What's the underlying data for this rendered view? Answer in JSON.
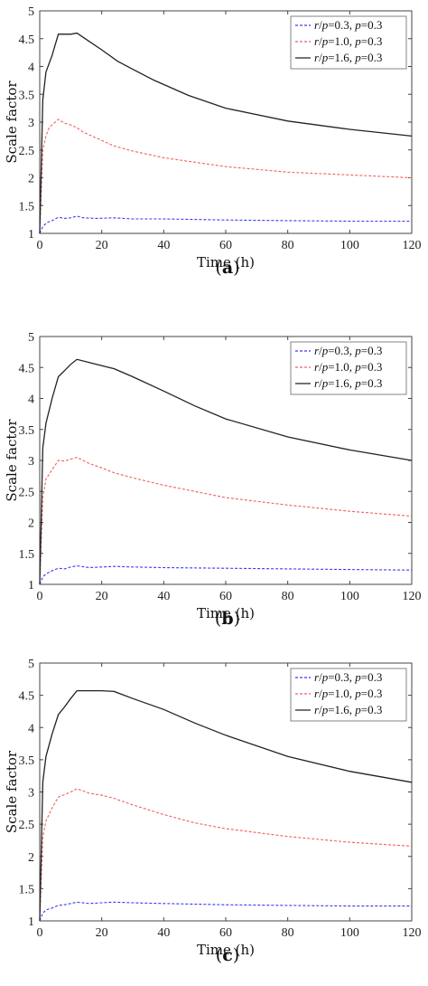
{
  "chart_data": [
    {
      "type": "line",
      "caption": "(a)",
      "xlabel": "Time (h)",
      "ylabel": "Scale factor",
      "xlim": [
        0,
        120
      ],
      "ylim": [
        1,
        5
      ],
      "xticks": [
        "0",
        "20",
        "40",
        "60",
        "80",
        "100",
        "120"
      ],
      "yticks": [
        "1",
        "1.5",
        "2",
        "2.5",
        "3",
        "3.5",
        "4",
        "4.5",
        "5"
      ],
      "legend_position": "top-right",
      "series": [
        {
          "name": "r/p=0.3, p=0.3",
          "color": "#3a3af0",
          "dash": "dashed",
          "x": [
            0,
            1,
            2,
            3,
            4,
            6,
            8,
            10,
            12,
            14,
            18,
            24,
            30,
            40,
            60,
            80,
            100,
            120
          ],
          "y": [
            1,
            1.12,
            1.18,
            1.21,
            1.23,
            1.29,
            1.27,
            1.28,
            1.31,
            1.28,
            1.27,
            1.28,
            1.26,
            1.26,
            1.24,
            1.23,
            1.22,
            1.22
          ]
        },
        {
          "name": "r/p=1.0, p=0.3",
          "color": "#f06060",
          "dash": "dashed",
          "x": [
            0,
            1,
            2,
            3,
            4,
            6,
            8,
            10,
            12,
            14,
            18,
            24,
            30,
            40,
            60,
            80,
            100,
            120
          ],
          "y": [
            1,
            2.5,
            2.75,
            2.9,
            2.95,
            3.05,
            2.98,
            2.95,
            2.9,
            2.82,
            2.72,
            2.57,
            2.48,
            2.36,
            2.2,
            2.1,
            2.05,
            2.0
          ]
        },
        {
          "name": "r/p=1.6, p=0.3",
          "color": "#222222",
          "dash": "solid",
          "x": [
            0,
            1,
            2,
            4,
            6,
            8,
            10,
            12,
            16,
            20,
            25,
            30,
            37,
            48,
            60,
            80,
            100,
            120
          ],
          "y": [
            1,
            3.4,
            3.9,
            4.2,
            4.58,
            4.58,
            4.58,
            4.6,
            4.45,
            4.3,
            4.1,
            3.95,
            3.75,
            3.48,
            3.25,
            3.02,
            2.87,
            2.75
          ]
        }
      ]
    },
    {
      "type": "line",
      "caption": "(b)",
      "xlabel": "Time (h)",
      "ylabel": "Scale factor",
      "xlim": [
        0,
        120
      ],
      "ylim": [
        1,
        5
      ],
      "xticks": [
        "0",
        "20",
        "40",
        "60",
        "80",
        "100",
        "120"
      ],
      "yticks": [
        "1",
        "1.5",
        "2",
        "2.5",
        "3",
        "3.5",
        "4",
        "4.5",
        "5"
      ],
      "legend_position": "top-right",
      "series": [
        {
          "name": "r/p=0.3, p=0.3",
          "color": "#3a3af0",
          "dash": "dashed",
          "x": [
            0,
            1,
            2,
            4,
            6,
            8,
            10,
            12,
            16,
            20,
            24,
            30,
            40,
            60,
            80,
            100,
            120
          ],
          "y": [
            1,
            1.12,
            1.17,
            1.22,
            1.26,
            1.25,
            1.28,
            1.3,
            1.27,
            1.28,
            1.29,
            1.28,
            1.27,
            1.26,
            1.25,
            1.24,
            1.23
          ]
        },
        {
          "name": "r/p=1.0, p=0.3",
          "color": "#f06060",
          "dash": "dashed",
          "x": [
            0,
            1,
            2,
            4,
            6,
            8,
            10,
            12,
            16,
            20,
            24,
            30,
            40,
            60,
            80,
            100,
            120
          ],
          "y": [
            1,
            2.4,
            2.7,
            2.85,
            3.0,
            2.99,
            3.02,
            3.05,
            2.95,
            2.88,
            2.8,
            2.72,
            2.6,
            2.4,
            2.28,
            2.18,
            2.1
          ]
        },
        {
          "name": "r/p=1.6, p=0.3",
          "color": "#222222",
          "dash": "solid",
          "x": [
            0,
            1,
            2,
            4,
            6,
            8,
            10,
            12,
            16,
            20,
            24,
            30,
            40,
            50,
            60,
            80,
            100,
            120
          ],
          "y": [
            1,
            3.2,
            3.6,
            4.0,
            4.35,
            4.45,
            4.55,
            4.63,
            4.58,
            4.53,
            4.48,
            4.35,
            4.12,
            3.88,
            3.67,
            3.38,
            3.17,
            3.0
          ]
        }
      ]
    },
    {
      "type": "line",
      "caption": "(c)",
      "xlabel": "Time (h)",
      "ylabel": "Scale factor",
      "xlim": [
        0,
        120
      ],
      "ylim": [
        1,
        5
      ],
      "xticks": [
        "0",
        "20",
        "40",
        "60",
        "80",
        "100",
        "120"
      ],
      "yticks": [
        "1",
        "1.5",
        "2",
        "2.5",
        "3",
        "3.5",
        "4",
        "4.5",
        "5"
      ],
      "legend_position": "top-right",
      "series": [
        {
          "name": "r/p=0.3, p=0.3",
          "color": "#3a3af0",
          "dash": "dashed",
          "x": [
            0,
            1,
            2,
            4,
            6,
            8,
            10,
            12,
            16,
            20,
            24,
            30,
            40,
            60,
            80,
            100,
            120
          ],
          "y": [
            1,
            1.12,
            1.17,
            1.2,
            1.24,
            1.25,
            1.27,
            1.29,
            1.27,
            1.28,
            1.29,
            1.28,
            1.27,
            1.25,
            1.24,
            1.23,
            1.23
          ]
        },
        {
          "name": "r/p=1.0, p=0.3",
          "color": "#f06060",
          "dash": "dashed",
          "x": [
            0,
            1,
            2,
            4,
            6,
            8,
            10,
            12,
            16,
            20,
            24,
            30,
            40,
            50,
            60,
            80,
            100,
            120
          ],
          "y": [
            1,
            2.3,
            2.55,
            2.75,
            2.92,
            2.96,
            3.0,
            3.05,
            2.98,
            2.95,
            2.9,
            2.8,
            2.65,
            2.52,
            2.43,
            2.31,
            2.22,
            2.16
          ]
        },
        {
          "name": "r/p=1.6, p=0.3",
          "color": "#222222",
          "dash": "solid",
          "x": [
            0,
            1,
            2,
            4,
            6,
            8,
            10,
            12,
            16,
            20,
            24,
            30,
            40,
            50,
            60,
            80,
            100,
            120
          ],
          "y": [
            1,
            3.15,
            3.55,
            3.9,
            4.2,
            4.32,
            4.45,
            4.57,
            4.57,
            4.57,
            4.56,
            4.45,
            4.28,
            4.07,
            3.88,
            3.55,
            3.32,
            3.15
          ]
        }
      ]
    }
  ]
}
